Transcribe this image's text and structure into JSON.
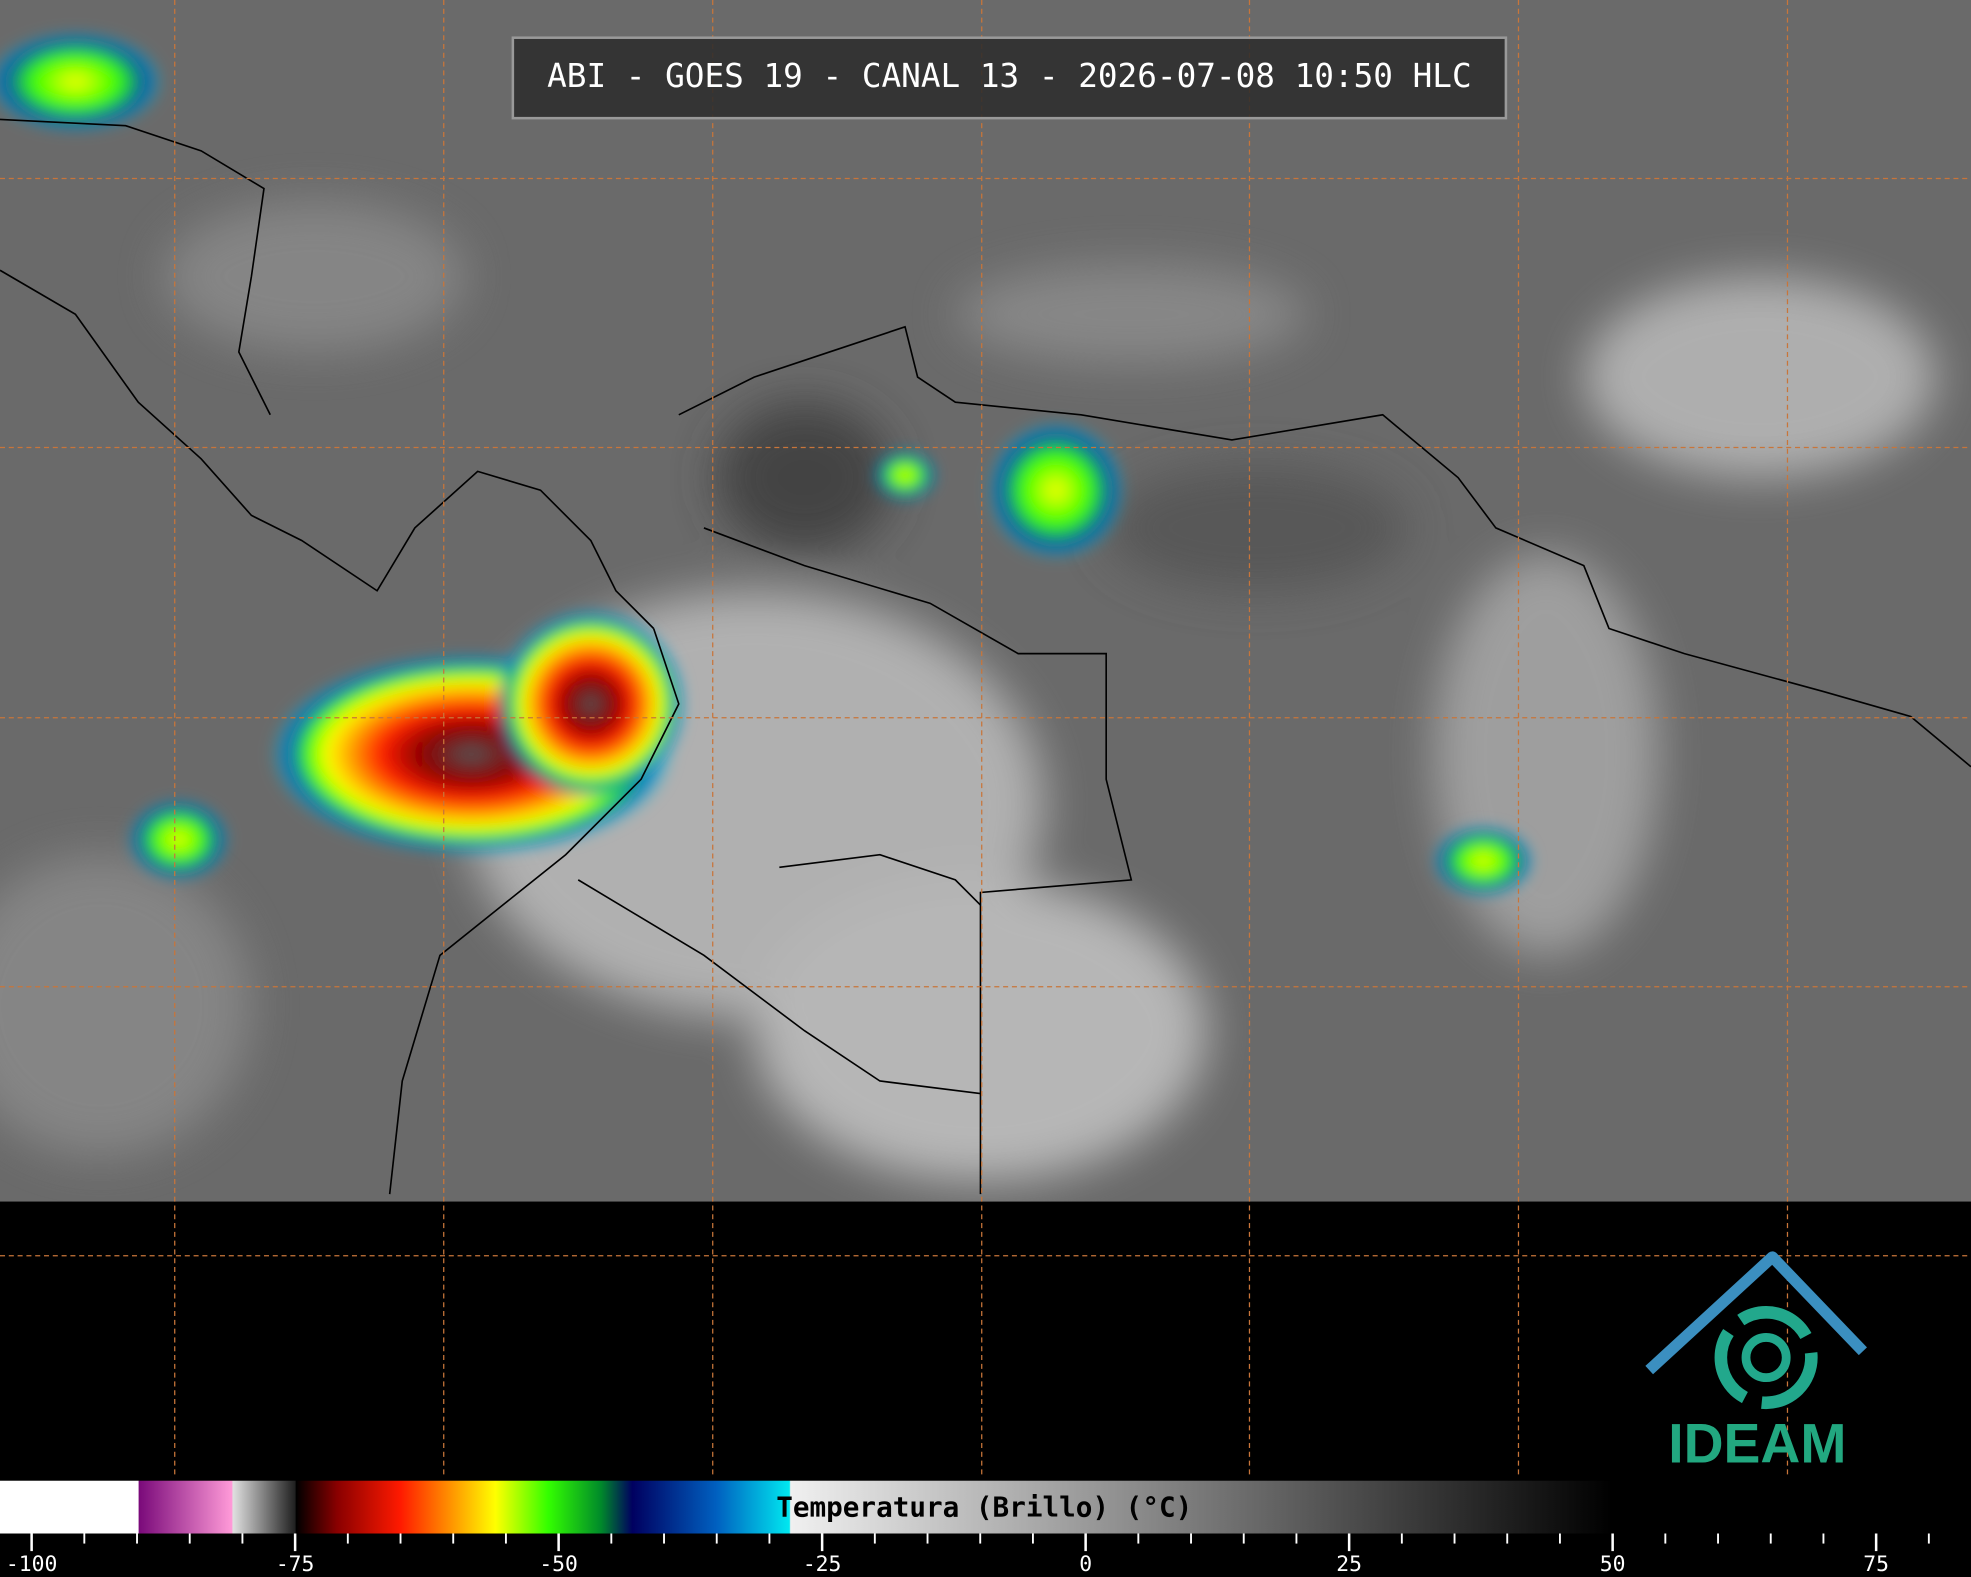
{
  "title": "ABI - GOES 19 - CANAL 13 - 2026-07-08 10:50 HLC",
  "colorbar": {
    "label": "Temperatura (Brillo) (°C)",
    "lim": [
      -103,
      84
    ],
    "ticks": [
      -100,
      -75,
      -50,
      -25,
      0,
      25,
      50,
      75
    ],
    "minor_ticks": [
      -95,
      -90,
      -85,
      -80,
      -70,
      -65,
      -60,
      -55,
      -45,
      -40,
      -35,
      -30,
      -20,
      -15,
      -10,
      -5,
      5,
      10,
      15,
      20,
      30,
      35,
      40,
      45,
      55,
      60,
      65,
      70,
      80
    ],
    "stops": [
      {
        "value": -103,
        "color": "#ffffff"
      },
      {
        "value": -89.9,
        "color": "#ffffff"
      },
      {
        "value": -89.8,
        "color": "#7a0a7a"
      },
      {
        "value": -81,
        "color": "#ff9ad8"
      },
      {
        "value": -80.9,
        "color": "#e0e0e0"
      },
      {
        "value": -75,
        "color": "#202020"
      },
      {
        "value": -74.9,
        "color": "#000000"
      },
      {
        "value": -71,
        "color": "#8a0000"
      },
      {
        "value": -65,
        "color": "#ff1a00"
      },
      {
        "value": -60,
        "color": "#ff9900"
      },
      {
        "value": -56,
        "color": "#ffff00"
      },
      {
        "value": -51,
        "color": "#33ff00"
      },
      {
        "value": -46,
        "color": "#008a2a"
      },
      {
        "value": -43,
        "color": "#000060"
      },
      {
        "value": -35,
        "color": "#0060c0"
      },
      {
        "value": -28.1,
        "color": "#00e8f0"
      },
      {
        "value": -28,
        "color": "#f0f0f0"
      },
      {
        "value": 50,
        "color": "#000000"
      },
      {
        "value": 84,
        "color": "#000000"
      }
    ]
  },
  "logo": "IDEAM"
}
